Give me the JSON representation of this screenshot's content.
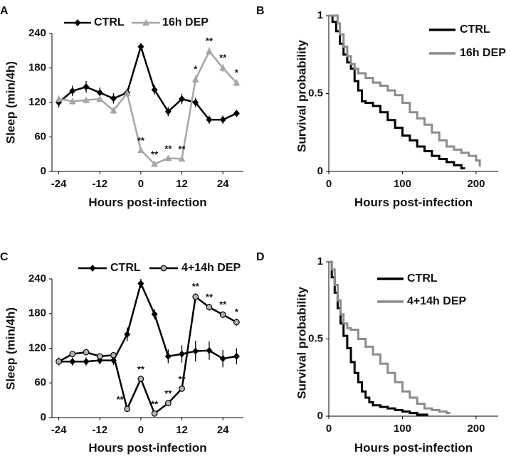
{
  "chart_data": [
    {
      "panel": "A",
      "type": "line",
      "xlabel": "Hours post-infection",
      "ylabel": "Sleep (min/4h)",
      "xticks": [
        -24,
        -12,
        0,
        12,
        24
      ],
      "yticks": [
        0,
        60,
        120,
        180,
        240
      ],
      "xlim": [
        -26,
        30
      ],
      "ylim": [
        0,
        240
      ],
      "x": [
        -24,
        -20,
        -16,
        -12,
        -8,
        -4,
        0,
        4,
        8,
        12,
        16,
        20,
        24,
        28
      ],
      "series": [
        {
          "name": "CTRL",
          "color": "#000000",
          "marker": "diamond",
          "values": [
            120,
            140,
            147,
            137,
            127,
            137,
            217,
            142,
            104,
            126,
            120,
            90,
            90,
            101
          ],
          "err": [
            9,
            9,
            10,
            9,
            9,
            7,
            6,
            8,
            8,
            9,
            8,
            7,
            7,
            6
          ]
        },
        {
          "name": "16h DEP",
          "color": "#a6a6a6",
          "marker": "triangle",
          "values": [
            126,
            122,
            124,
            126,
            106,
            136,
            37,
            13,
            23,
            22,
            160,
            209,
            180,
            154
          ],
          "err": [
            6,
            6,
            6,
            6,
            6,
            5,
            5,
            4,
            5,
            5,
            7,
            7,
            7,
            6
          ]
        }
      ],
      "annotations": [
        {
          "x": 0,
          "text": "**"
        },
        {
          "x": 4,
          "text": "**"
        },
        {
          "x": 8,
          "text": "**"
        },
        {
          "x": 12,
          "text": "**"
        },
        {
          "x": 16,
          "text": "*"
        },
        {
          "x": 20,
          "text": "**"
        },
        {
          "x": 24,
          "text": "**"
        },
        {
          "x": 28,
          "text": "*"
        }
      ]
    },
    {
      "panel": "B",
      "type": "line",
      "xlabel": "Hours post-infection",
      "ylabel": "Survival probability",
      "xticks": [
        0,
        100,
        200
      ],
      "ytick_labels": [
        "0",
        "0.5",
        "1"
      ],
      "yticks": [
        0,
        0.5,
        1
      ],
      "xlim": [
        0,
        230
      ],
      "ylim": [
        0,
        1
      ],
      "series": [
        {
          "name": "CTRL",
          "color": "#000000",
          "x": [
            0,
            5,
            10,
            15,
            20,
            25,
            30,
            35,
            40,
            45,
            50,
            60,
            70,
            80,
            90,
            100,
            110,
            120,
            130,
            140,
            150,
            160,
            170,
            180,
            185
          ],
          "values": [
            1,
            0.96,
            0.9,
            0.82,
            0.75,
            0.7,
            0.66,
            0.58,
            0.52,
            0.45,
            0.44,
            0.42,
            0.38,
            0.33,
            0.28,
            0.23,
            0.2,
            0.16,
            0.13,
            0.1,
            0.08,
            0.06,
            0.04,
            0.02,
            0.02
          ]
        },
        {
          "name": "16h DEP",
          "color": "#8c8c8c",
          "x": [
            0,
            8,
            12,
            15,
            20,
            25,
            30,
            35,
            40,
            50,
            60,
            70,
            80,
            90,
            100,
            110,
            120,
            130,
            140,
            150,
            160,
            170,
            180,
            190,
            200,
            205
          ],
          "values": [
            1,
            1,
            0.95,
            0.88,
            0.8,
            0.74,
            0.69,
            0.66,
            0.63,
            0.6,
            0.57,
            0.55,
            0.52,
            0.49,
            0.44,
            0.38,
            0.34,
            0.3,
            0.25,
            0.2,
            0.16,
            0.14,
            0.12,
            0.1,
            0.07,
            0.03
          ]
        }
      ]
    },
    {
      "panel": "C",
      "type": "line",
      "xlabel": "Hours post-infection",
      "ylabel": "Sleep (min/4h)",
      "xticks": [
        -24,
        -12,
        0,
        12,
        24
      ],
      "yticks": [
        0,
        60,
        120,
        180,
        240
      ],
      "xlim": [
        -26,
        30
      ],
      "ylim": [
        0,
        240
      ],
      "x": [
        -24,
        -20,
        -16,
        -12,
        -8,
        -4,
        0,
        4,
        8,
        12,
        16,
        20,
        24,
        28
      ],
      "series": [
        {
          "name": "CTRL",
          "color": "#000000",
          "marker": "diamond",
          "values": [
            97,
            97,
            97,
            99,
            99,
            144,
            232,
            179,
            106,
            110,
            115,
            116,
            102,
            106
          ],
          "err": [
            7,
            7,
            7,
            7,
            8,
            12,
            8,
            9,
            12,
            15,
            18,
            16,
            15,
            14
          ]
        },
        {
          "name": "4+14h DEP",
          "color": "#000000",
          "fill": "#b3b3b3",
          "marker": "circle",
          "values": [
            97,
            110,
            113,
            106,
            108,
            15,
            67,
            7,
            25,
            50,
            209,
            191,
            178,
            165
          ],
          "err": [
            4,
            4,
            4,
            4,
            4,
            4,
            5,
            4,
            4,
            5,
            6,
            6,
            6,
            6
          ]
        }
      ],
      "annotations": [
        {
          "x": -4,
          "text": "**"
        },
        {
          "x": 0,
          "text": "**"
        },
        {
          "x": 4,
          "text": "**"
        },
        {
          "x": 8,
          "text": "**"
        },
        {
          "x": 12,
          "text": "**"
        },
        {
          "x": 16,
          "text": "**"
        },
        {
          "x": 20,
          "text": "**"
        },
        {
          "x": 24,
          "text": "**"
        },
        {
          "x": 28,
          "text": "*"
        }
      ]
    },
    {
      "panel": "D",
      "type": "line",
      "xlabel": "Hours post-infection",
      "ylabel": "Survival probability",
      "xticks": [
        0,
        100,
        200
      ],
      "ytick_labels": [
        "0",
        "0.5",
        "1"
      ],
      "yticks": [
        0,
        0.5,
        1
      ],
      "xlim": [
        0,
        230
      ],
      "ylim": [
        0,
        1
      ],
      "series": [
        {
          "name": "CTRL",
          "color": "#000000",
          "x": [
            0,
            4,
            8,
            12,
            16,
            20,
            25,
            30,
            35,
            40,
            45,
            50,
            55,
            60,
            70,
            80,
            90,
            100,
            110,
            120,
            130,
            135
          ],
          "values": [
            1,
            0.9,
            0.8,
            0.7,
            0.6,
            0.52,
            0.44,
            0.35,
            0.28,
            0.22,
            0.16,
            0.12,
            0.09,
            0.07,
            0.06,
            0.05,
            0.04,
            0.03,
            0.02,
            0.01,
            0.01,
            0.01
          ]
        },
        {
          "name": "4+14h DEP",
          "color": "#8c8c8c",
          "x": [
            0,
            4,
            8,
            12,
            16,
            20,
            25,
            30,
            40,
            50,
            60,
            70,
            80,
            90,
            100,
            110,
            120,
            130,
            140,
            150,
            160,
            165
          ],
          "values": [
            1,
            0.95,
            0.85,
            0.75,
            0.66,
            0.6,
            0.57,
            0.56,
            0.5,
            0.45,
            0.4,
            0.34,
            0.28,
            0.22,
            0.16,
            0.12,
            0.08,
            0.05,
            0.04,
            0.03,
            0.02,
            0.02
          ]
        }
      ]
    }
  ]
}
